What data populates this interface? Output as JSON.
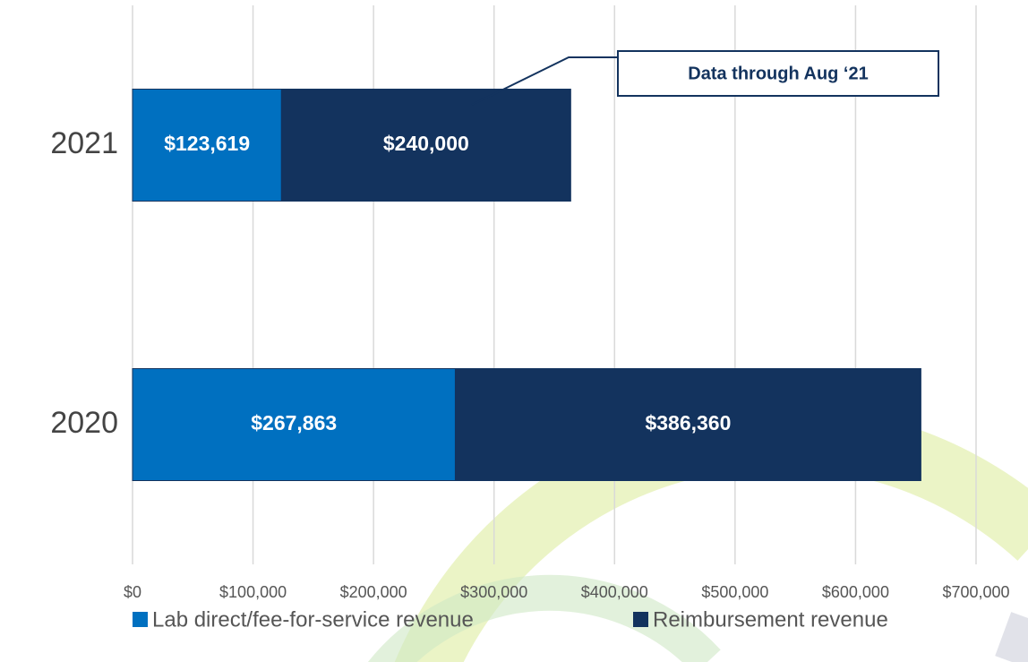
{
  "chart_data": {
    "type": "bar",
    "orientation": "horizontal",
    "stacked": true,
    "categories": [
      "2021",
      "2020"
    ],
    "series": [
      {
        "name": "Lab direct/fee-for-service revenue",
        "color": "#0070c0",
        "values": [
          123619,
          267863
        ],
        "value_labels": [
          "$123,619",
          "$267,863"
        ]
      },
      {
        "name": "Reimbursement revenue",
        "color": "#13335e",
        "values": [
          240000,
          386360
        ],
        "value_labels": [
          "$240,000",
          "$386,360"
        ]
      }
    ],
    "xlim": [
      0,
      700000
    ],
    "xticks": [
      {
        "value": 0,
        "label": "$0"
      },
      {
        "value": 100000,
        "label": "$100,000"
      },
      {
        "value": 200000,
        "label": "$200,000"
      },
      {
        "value": 300000,
        "label": "$300,000"
      },
      {
        "value": 400000,
        "label": "$400,000"
      },
      {
        "value": 500000,
        "label": "$500,000"
      },
      {
        "value": 600000,
        "label": "$600,000"
      },
      {
        "value": 700000,
        "label": "$700,000"
      }
    ],
    "grid": true,
    "legend": "bottom",
    "annotation": "Data through Aug ‘21"
  }
}
